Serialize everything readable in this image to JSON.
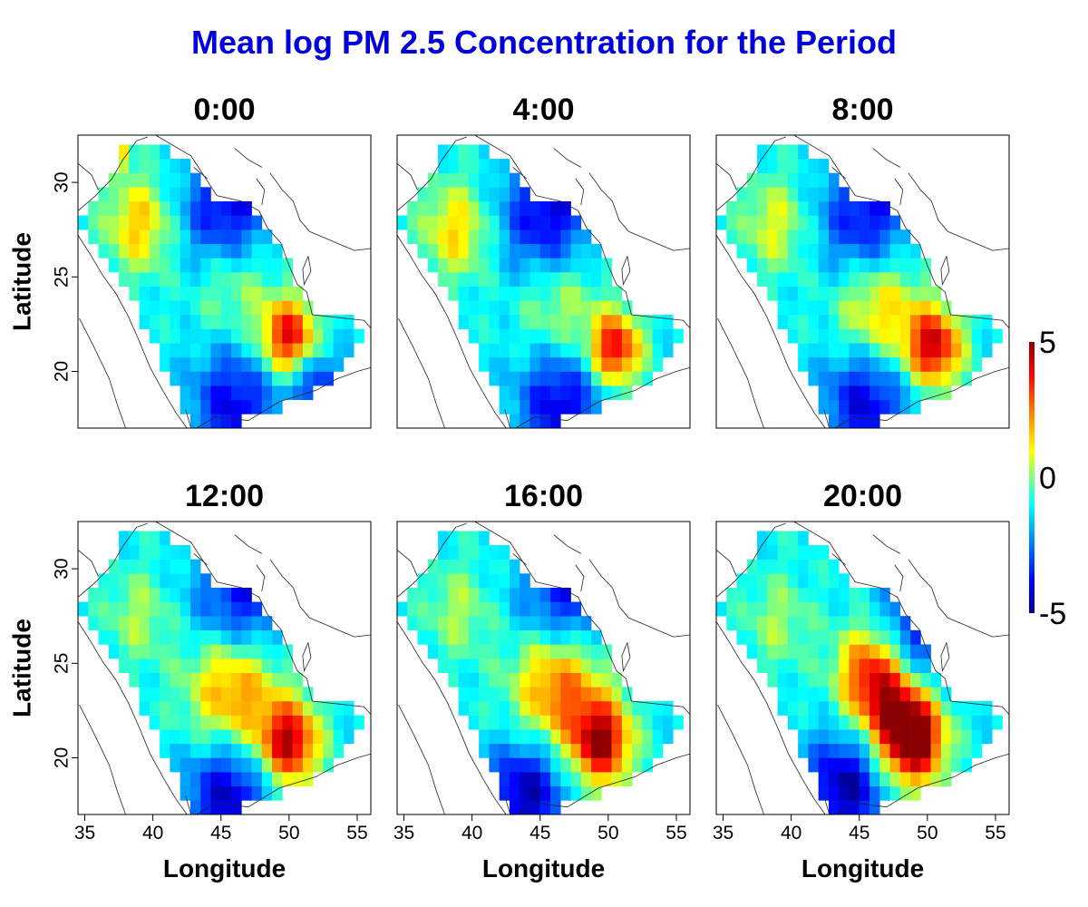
{
  "title": "Mean log PM 2.5 Concentration for the Period",
  "title_color": "#0000dd",
  "chart_data": {
    "type": "heatmap",
    "title": "Mean log PM 2.5 Concentration for the Period",
    "xlabel": "Longitude",
    "ylabel": "Latitude",
    "xlim": [
      34.5,
      56
    ],
    "ylim": [
      17,
      32.5
    ],
    "x_ticks": [
      35,
      40,
      45,
      50,
      55
    ],
    "y_ticks": [
      20,
      25,
      30
    ],
    "x_tick_labels": [
      "35",
      "40",
      "45",
      "50",
      "55"
    ],
    "y_tick_labels": [
      "20",
      "25",
      "30"
    ],
    "colorbar": {
      "range": [
        -5,
        5
      ],
      "tick_labels": [
        "5",
        "0",
        "-5"
      ],
      "tick_values": [
        5,
        0,
        -5
      ],
      "colors": [
        "#00008b",
        "#0000ff",
        "#00ffff",
        "#ffff00",
        "#ff0000",
        "#8b0000"
      ]
    },
    "grid": false,
    "panels": [
      {
        "label": "0:00",
        "hotspots": [
          {
            "lon": 50,
            "lat": 21.8,
            "value": 4.1,
            "radius": 1.4
          },
          {
            "lon": 39,
            "lat": 27.8,
            "value": 1.6,
            "radius": 1.8
          },
          {
            "lon": 46,
            "lat": 25.1,
            "value": 0.9,
            "radius": 2.2
          },
          {
            "lon": 37.5,
            "lat": 31.4,
            "value": 2.5,
            "radius": 0.5
          },
          {
            "lon": 45.5,
            "lat": 28.2,
            "value": -4.5,
            "radius": 2.4
          },
          {
            "lon": 46,
            "lat": 18.2,
            "value": -4.0,
            "radius": 2.2
          },
          {
            "lon": 52,
            "lat": 19.3,
            "value": -3.6,
            "radius": 1.4
          }
        ]
      },
      {
        "label": "4:00",
        "hotspots": [
          {
            "lon": 50.5,
            "lat": 21.2,
            "value": 4.1,
            "radius": 1.3
          },
          {
            "lon": 38.8,
            "lat": 27.5,
            "value": 1.4,
            "radius": 1.8
          },
          {
            "lon": 46.5,
            "lat": 23.5,
            "value": 0.7,
            "radius": 2.2
          },
          {
            "lon": 45.5,
            "lat": 28.2,
            "value": -4.2,
            "radius": 2.4
          },
          {
            "lon": 46.5,
            "lat": 18.3,
            "value": -4.2,
            "radius": 2.2
          }
        ]
      },
      {
        "label": "8:00",
        "hotspots": [
          {
            "lon": 50.5,
            "lat": 21.3,
            "value": 4.2,
            "radius": 1.4
          },
          {
            "lon": 46.5,
            "lat": 23.2,
            "value": 1.8,
            "radius": 2.3
          },
          {
            "lon": 38.8,
            "lat": 27.8,
            "value": 0.8,
            "radius": 1.8
          },
          {
            "lon": 45.5,
            "lat": 28.0,
            "value": -4.0,
            "radius": 2.4
          },
          {
            "lon": 45.5,
            "lat": 18.5,
            "value": -4.3,
            "radius": 2.2
          }
        ]
      },
      {
        "label": "12:00",
        "hotspots": [
          {
            "lon": 50,
            "lat": 20.8,
            "value": 4.5,
            "radius": 1.5
          },
          {
            "lon": 46,
            "lat": 23.8,
            "value": 2.8,
            "radius": 2.4
          },
          {
            "lon": 39,
            "lat": 27.5,
            "value": 0.3,
            "radius": 1.8
          },
          {
            "lon": 46.5,
            "lat": 28.0,
            "value": -4.2,
            "radius": 2.5
          },
          {
            "lon": 45.5,
            "lat": 18.0,
            "value": -4.5,
            "radius": 2.2
          }
        ]
      },
      {
        "label": "16:00",
        "hotspots": [
          {
            "lon": 49.5,
            "lat": 20.8,
            "value": 4.5,
            "radius": 1.5
          },
          {
            "lon": 46.5,
            "lat": 24.0,
            "value": 3.3,
            "radius": 2.4
          },
          {
            "lon": 39,
            "lat": 27.8,
            "value": 0.3,
            "radius": 1.8
          },
          {
            "lon": 47,
            "lat": 28.0,
            "value": -4.3,
            "radius": 2.5
          },
          {
            "lon": 44,
            "lat": 18.2,
            "value": -4.7,
            "radius": 2.0
          }
        ]
      },
      {
        "label": "20:00",
        "hotspots": [
          {
            "lon": 49,
            "lat": 20.8,
            "value": 4.5,
            "radius": 1.5
          },
          {
            "lon": 46,
            "lat": 24.5,
            "value": 3.5,
            "radius": 1.8
          },
          {
            "lon": 48,
            "lat": 22.5,
            "value": 3.0,
            "radius": 2.0
          },
          {
            "lon": 39,
            "lat": 27.2,
            "value": 0.2,
            "radius": 1.8
          },
          {
            "lon": 49,
            "lat": 26.0,
            "value": -4.4,
            "radius": 2.2
          },
          {
            "lon": 44,
            "lat": 18.5,
            "value": -4.8,
            "radius": 2.0
          }
        ]
      }
    ]
  }
}
